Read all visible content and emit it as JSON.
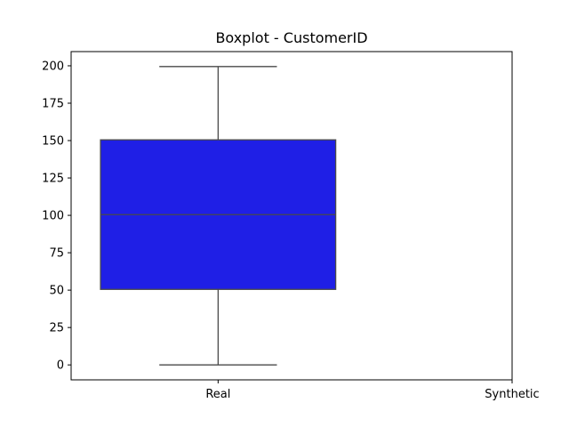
{
  "chart_data": {
    "type": "box",
    "title": "Boxplot - CustomerID",
    "xlabel": "",
    "ylabel": "",
    "categories": [
      "Real",
      "Synthetic"
    ],
    "ylim": [
      -10,
      209.5
    ],
    "yticks": [
      0,
      25,
      50,
      75,
      100,
      125,
      150,
      175,
      200
    ],
    "grid": false,
    "legend": "none",
    "boxes": [
      {
        "category": "Real",
        "whisker_low": 0,
        "q1": 50.5,
        "median": 100.5,
        "q3": 150.5,
        "whisker_high": 199.5,
        "color": "#1f1fe6",
        "line_color": "#4a4a4a"
      }
    ]
  }
}
